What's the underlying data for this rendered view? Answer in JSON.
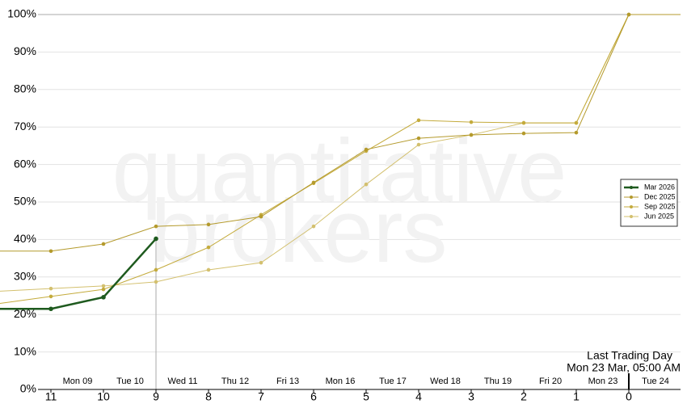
{
  "chart_data": {
    "type": "line",
    "watermark": [
      "quantitative",
      "brokers"
    ],
    "categories": [
      "11",
      "10",
      "9",
      "8",
      "7",
      "6",
      "5",
      "4",
      "3",
      "2",
      "1",
      "0"
    ],
    "day_labels": [
      "Mon 09",
      "Tue 10",
      "Wed 11",
      "Thu 12",
      "Fri 13",
      "Mon 16",
      "Tue 17",
      "Wed 18",
      "Thu 19",
      "Fri 20",
      "Mon 23",
      "Tue 24"
    ],
    "annotation": [
      "Last Trading Day",
      "Mon 23 Mar, 05:00 AM"
    ],
    "ylim": [
      0,
      100
    ],
    "yticks": [
      {
        "value": 0,
        "label": "0%"
      },
      {
        "value": 10,
        "label": "10%"
      },
      {
        "value": 20,
        "label": "20%"
      },
      {
        "value": 30,
        "label": "30%"
      },
      {
        "value": 40,
        "label": "40%"
      },
      {
        "value": 50,
        "label": "50%"
      },
      {
        "value": 60,
        "label": "60%"
      },
      {
        "value": 70,
        "label": "70%"
      },
      {
        "value": 80,
        "label": "80%"
      },
      {
        "value": 90,
        "label": "90%"
      },
      {
        "value": 100,
        "label": "100%"
      }
    ],
    "grid": true,
    "legend": "right",
    "series": [
      {
        "name": "Mar 2026",
        "color": "#1e5a1e",
        "values": [
          21.5,
          24.6,
          40.2,
          null,
          null,
          null,
          null,
          null,
          null,
          null,
          null,
          null
        ]
      },
      {
        "name": "Dec 2025",
        "color": "#b49a2c",
        "values": [
          36.9,
          38.8,
          43.5,
          44.0,
          46.1,
          55.2,
          64.0,
          67.0,
          67.9,
          68.3,
          68.5,
          100
        ]
      },
      {
        "name": "Sep 2025",
        "color": "#c4ab3c",
        "values": [
          24.8,
          26.7,
          31.9,
          37.9,
          46.6,
          55.0,
          63.6,
          71.8,
          71.3,
          71.1,
          71.1,
          100
        ]
      },
      {
        "name": "Jun 2025",
        "color": "#d3c06e",
        "values": [
          26.9,
          27.6,
          28.7,
          31.9,
          33.8,
          43.5,
          54.7,
          65.3,
          67.9,
          71.1,
          71.1,
          100
        ]
      }
    ]
  }
}
